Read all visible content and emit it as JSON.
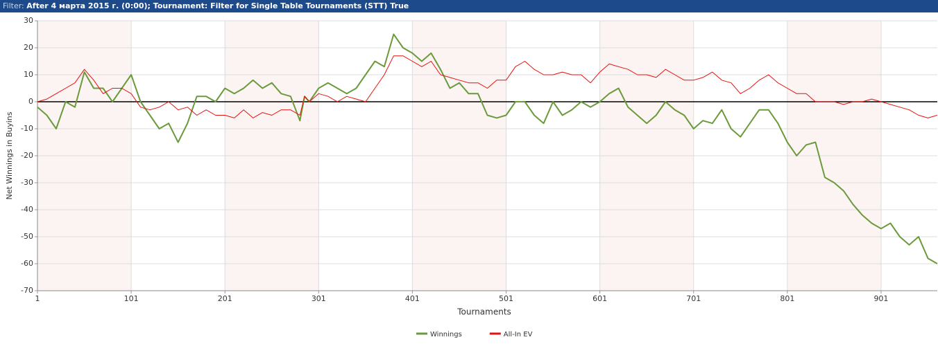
{
  "header": {
    "filter_label": "Filter:",
    "filter_text": "After 4 марта 2015 г. (0:00); Tournament: Filter for Single Table Tournaments (STT) True"
  },
  "chart_data": {
    "type": "line",
    "xlabel": "Tournaments",
    "ylabel": "Net Winnings in Buyins",
    "xlim": [
      1,
      961
    ],
    "ylim": [
      -70,
      30
    ],
    "xticks": [
      1,
      101,
      201,
      301,
      401,
      501,
      601,
      701,
      801,
      901
    ],
    "yticks": [
      30,
      20,
      10,
      0,
      -10,
      -20,
      -30,
      -40,
      -50,
      -60,
      -70
    ],
    "grid": true,
    "shaded_bands": true,
    "legend": "bottom",
    "x": [
      1,
      11,
      21,
      31,
      41,
      51,
      61,
      71,
      81,
      91,
      101,
      111,
      121,
      131,
      141,
      151,
      161,
      171,
      181,
      191,
      201,
      211,
      221,
      231,
      241,
      251,
      261,
      271,
      281,
      286,
      291,
      301,
      311,
      321,
      331,
      341,
      351,
      361,
      371,
      381,
      391,
      401,
      411,
      421,
      431,
      441,
      451,
      461,
      471,
      481,
      491,
      501,
      511,
      521,
      531,
      541,
      551,
      561,
      571,
      581,
      591,
      601,
      611,
      621,
      631,
      641,
      651,
      661,
      671,
      681,
      691,
      701,
      711,
      721,
      731,
      741,
      751,
      761,
      771,
      781,
      791,
      801,
      811,
      821,
      831,
      841,
      851,
      861,
      871,
      881,
      891,
      901,
      911,
      921,
      931,
      941,
      951,
      961
    ],
    "series": [
      {
        "name": "Winnings",
        "color": "#6a9a3a",
        "width": 2,
        "values": [
          -2,
          -5,
          -10,
          0,
          -2,
          11,
          5,
          5,
          0,
          5,
          10,
          0,
          -5,
          -10,
          -8,
          -15,
          -8,
          2,
          2,
          0,
          5,
          3,
          5,
          8,
          5,
          7,
          3,
          2,
          -7,
          2,
          0,
          5,
          7,
          5,
          3,
          5,
          10,
          15,
          13,
          25,
          20,
          18,
          15,
          18,
          12,
          5,
          7,
          3,
          3,
          -5,
          -6,
          -5,
          0,
          0,
          -5,
          -8,
          0,
          -5,
          -3,
          0,
          -2,
          0,
          3,
          5,
          -2,
          -5,
          -8,
          -5,
          0,
          -3,
          -5,
          -10,
          -7,
          -8,
          -3,
          -10,
          -13,
          -8,
          -3,
          -3,
          -8,
          -15,
          -20,
          -16,
          -15,
          -28,
          -30,
          -33,
          -38,
          -42,
          -45,
          -47,
          -45,
          -50,
          -53,
          -50,
          -58,
          -60
        ]
      },
      {
        "name": "All-In EV",
        "color": "#e8100c",
        "width": 1,
        "values": [
          0,
          1,
          3,
          5,
          7,
          12,
          8,
          3,
          5,
          5,
          3,
          -2,
          -3,
          -2,
          0,
          -3,
          -2,
          -5,
          -3,
          -5,
          -5,
          -6,
          -3,
          -6,
          -4,
          -5,
          -3,
          -3,
          -5,
          2,
          0,
          3,
          2,
          0,
          2,
          1,
          0,
          5,
          10,
          17,
          17,
          15,
          13,
          15,
          10,
          9,
          8,
          7,
          7,
          5,
          8,
          8,
          13,
          15,
          12,
          10,
          10,
          11,
          10,
          10,
          7,
          11,
          14,
          13,
          12,
          10,
          10,
          9,
          12,
          10,
          8,
          8,
          9,
          11,
          8,
          7,
          3,
          5,
          8,
          10,
          7,
          5,
          3,
          3,
          0,
          0,
          0,
          -1,
          0,
          0,
          1,
          0,
          -1,
          -2,
          -3,
          -5,
          -6,
          -5
        ]
      }
    ]
  }
}
